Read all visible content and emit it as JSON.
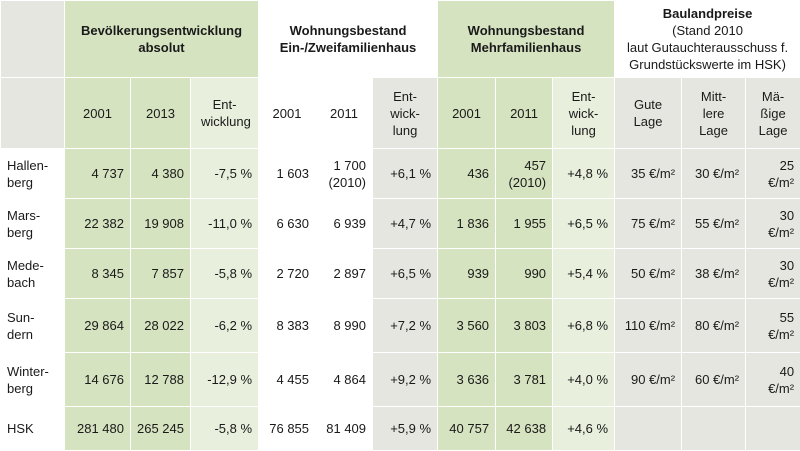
{
  "header": {
    "bev": "Bevölkerungsentwicklung absolut",
    "woh_ez": "Wohnungsbestand Ein-/Zweifamilienhaus",
    "woh_mf": "Wohnungsbestand Mehrfamilienhaus",
    "bau_title": "Baulandpreise",
    "bau_sub1": "(Stand 2010",
    "bau_sub2": "laut Gutauchterausschuss f.",
    "bau_sub3": "Grundstückswerte im HSK)"
  },
  "subheader": {
    "y2001a": "2001",
    "y2013": "2013",
    "entw1": "Ent-wicklung",
    "y2001b": "2001",
    "y2011b": "2011",
    "entw2": "Ent-wick-lung",
    "y2001c": "2001",
    "y2011c": "2011",
    "entw3": "Ent-wicklung",
    "gute": "Gute Lage",
    "mittlere": "Mitt-lere Lage",
    "maessige": "Mä-ßige Lage"
  },
  "rows": [
    {
      "name": "Hallen-berg",
      "bev2001": "4 737",
      "bev2013": "4 380",
      "bevEntw": "-7,5 %",
      "ez2001": "1 603",
      "ez2011": "1 700",
      "ez2011note": "(2010)",
      "ezEntw": "+6,1 %",
      "mf2001": "436",
      "mf2011": "457",
      "mf2011note": "(2010)",
      "mfEntw": "+4,8 %",
      "gute": "35 €/m²",
      "mittlere": "30 €/m²",
      "maessige": "25 €/m²"
    },
    {
      "name": "Mars-berg",
      "bev2001": "22 382",
      "bev2013": "19 908",
      "bevEntw": "-11,0 %",
      "ez2001": "6 630",
      "ez2011": "6 939",
      "ez2011note": "",
      "ezEntw": "+4,7 %",
      "mf2001": "1 836",
      "mf2011": "1 955",
      "mf2011note": "",
      "mfEntw": "+6,5 %",
      "gute": "75 €/m²",
      "mittlere": "55 €/m²",
      "maessige": "30 €/m²"
    },
    {
      "name": "Mede-bach",
      "bev2001": "8 345",
      "bev2013": "7 857",
      "bevEntw": "-5,8 %",
      "ez2001": "2 720",
      "ez2011": "2 897",
      "ez2011note": "",
      "ezEntw": "+6,5 %",
      "mf2001": "939",
      "mf2011": "990",
      "mf2011note": "",
      "mfEntw": "+5,4 %",
      "gute": "50 €/m²",
      "mittlere": "38 €/m²",
      "maessige": "30 €/m²"
    },
    {
      "name": "Sun-dern",
      "bev2001": "29 864",
      "bev2013": "28 022",
      "bevEntw": "-6,2 %",
      "ez2001": "8 383",
      "ez2011": "8 990",
      "ez2011note": "",
      "ezEntw": "+7,2 %",
      "mf2001": "3 560",
      "mf2011": "3 803",
      "mf2011note": "",
      "mfEntw": "+6,8 %",
      "gute": "110 €/m²",
      "mittlere": "80 €/m²",
      "maessige": "55 €/m²"
    },
    {
      "name": "Winter-berg",
      "bev2001": "14 676",
      "bev2013": "12 788",
      "bevEntw": "-12,9 %",
      "ez2001": "4 455",
      "ez2011": "4 864",
      "ez2011note": "",
      "ezEntw": "+9,2 %",
      "mf2001": "3 636",
      "mf2011": "3 781",
      "mf2011note": "",
      "mfEntw": "+4,0 %",
      "gute": "90 €/m²",
      "mittlere": "60 €/m²",
      "maessige": "40 €/m²"
    },
    {
      "name": "HSK",
      "bev2001": "281 480",
      "bev2013": "265 245",
      "bevEntw": "-5,8 %",
      "ez2001": "76 855",
      "ez2011": "81 409",
      "ez2011note": "",
      "ezEntw": "+5,9 %",
      "mf2001": "40 757",
      "mf2011": "42 638",
      "mf2011note": "",
      "mfEntw": "+4,6 %",
      "gute": "",
      "mittlere": "",
      "maessige": ""
    }
  ]
}
